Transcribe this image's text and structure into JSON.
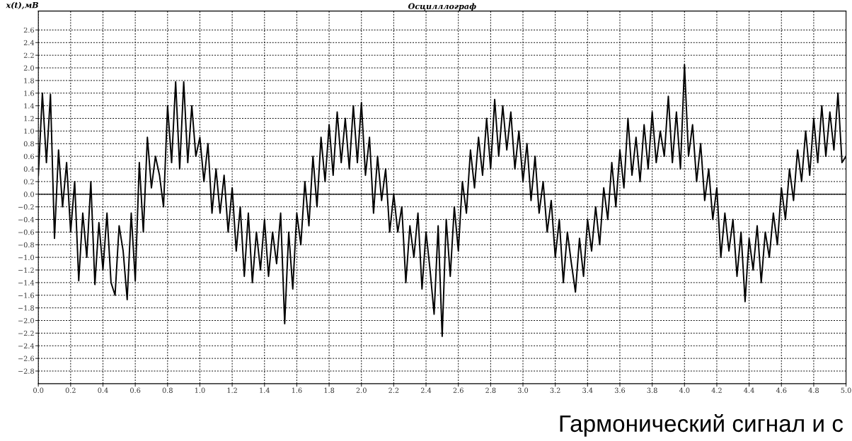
{
  "chart_data": {
    "type": "line",
    "title": "Осцилллограф",
    "ylabel": "x(t),мВ",
    "annotations": [
      "Гармонический сигнал и с"
    ],
    "xlim": [
      0,
      5
    ],
    "xticks": [
      {
        "value": 0,
        "label": "0.0"
      },
      0.2,
      0.4,
      0.6,
      0.8,
      {
        "value": 1,
        "label": "1.0"
      },
      1.2,
      1.4,
      1.6,
      1.8,
      {
        "value": 2,
        "label": "2.0"
      },
      2.2,
      2.4,
      2.6,
      2.8,
      {
        "value": 3,
        "label": "3.0"
      },
      3.2,
      3.4,
      3.6,
      3.8,
      {
        "value": 4,
        "label": "4.0"
      },
      4.2,
      4.4,
      4.6,
      4.8,
      {
        "value": 5,
        "label": "5.0"
      }
    ],
    "ylim": [
      -3.0,
      2.9
    ],
    "yticks": [
      2.6,
      2.4,
      2.2,
      {
        "value": 2,
        "label": "2.0"
      },
      1.8,
      1.6,
      1.4,
      1.2,
      {
        "value": 1,
        "label": "1.0"
      },
      0.8,
      0.6,
      0.4,
      0.2,
      {
        "value": 0,
        "label": "0.0"
      },
      -0.2,
      -0.4,
      -0.6,
      -0.8,
      {
        "value": -1,
        "label": "−1.0"
      },
      -1.2,
      -1.4,
      -1.6,
      -1.8,
      {
        "value": -2,
        "label": "−2.0"
      },
      -2.2,
      -2.4,
      -2.6,
      -2.8
    ],
    "grid": true,
    "legend": false,
    "marker": "none",
    "line_style": "solid",
    "ref_lines": [
      {
        "axis": "y",
        "value": 0,
        "color": "#000000",
        "line_style": "solid"
      }
    ],
    "series": [
      {
        "color": "#000000",
        "x": [
          0,
          0.025,
          0.05,
          0.075,
          0.1,
          0.125,
          0.15,
          0.175,
          0.2,
          0.225,
          0.25,
          0.275,
          0.3,
          0.325,
          0.35,
          0.375,
          0.4,
          0.425,
          0.45,
          0.475,
          0.5,
          0.525,
          0.55,
          0.575,
          0.6,
          0.625,
          0.65,
          0.675,
          0.7,
          0.725,
          0.75,
          0.775,
          0.8,
          0.825,
          0.85,
          0.875,
          0.9,
          0.925,
          0.95,
          0.975,
          1.0,
          1.025,
          1.05,
          1.075,
          1.1,
          1.125,
          1.15,
          1.175,
          1.2,
          1.225,
          1.25,
          1.275,
          1.3,
          1.325,
          1.35,
          1.375,
          1.4,
          1.425,
          1.45,
          1.475,
          1.5,
          1.525,
          1.55,
          1.575,
          1.6,
          1.625,
          1.65,
          1.675,
          1.7,
          1.725,
          1.75,
          1.775,
          1.8,
          1.825,
          1.85,
          1.875,
          1.9,
          1.925,
          1.95,
          1.975,
          2.0,
          2.025,
          2.05,
          2.075,
          2.1,
          2.125,
          2.15,
          2.175,
          2.2,
          2.225,
          2.25,
          2.275,
          2.3,
          2.325,
          2.35,
          2.375,
          2.4,
          2.425,
          2.45,
          2.475,
          2.5,
          2.525,
          2.55,
          2.575,
          2.6,
          2.625,
          2.65,
          2.675,
          2.7,
          2.725,
          2.75,
          2.775,
          2.8,
          2.825,
          2.85,
          2.875,
          2.9,
          2.925,
          2.95,
          2.975,
          3.0,
          3.025,
          3.05,
          3.075,
          3.1,
          3.125,
          3.15,
          3.175,
          3.2,
          3.225,
          3.25,
          3.275,
          3.3,
          3.325,
          3.35,
          3.375,
          3.4,
          3.425,
          3.45,
          3.475,
          3.5,
          3.525,
          3.55,
          3.575,
          3.6,
          3.625,
          3.65,
          3.675,
          3.7,
          3.725,
          3.75,
          3.775,
          3.8,
          3.825,
          3.85,
          3.875,
          3.9,
          3.925,
          3.95,
          3.975,
          4.0,
          4.025,
          4.05,
          4.075,
          4.1,
          4.125,
          4.15,
          4.175,
          4.2,
          4.225,
          4.25,
          4.275,
          4.3,
          4.325,
          4.35,
          4.375,
          4.4,
          4.425,
          4.45,
          4.475,
          4.5,
          4.525,
          4.55,
          4.575,
          4.6,
          4.625,
          4.65,
          4.675,
          4.7,
          4.725,
          4.75,
          4.775,
          4.8,
          4.825,
          4.85,
          4.875,
          4.9,
          4.925,
          4.95,
          4.975,
          5.0
        ],
        "values": [
          0.3,
          1.6,
          0.5,
          1.58,
          -0.7,
          0.7,
          -0.2,
          0.5,
          -0.6,
          0.2,
          -1.37,
          -0.3,
          -1.0,
          0.2,
          -1.43,
          -0.45,
          -1.2,
          -0.3,
          -1.4,
          -1.6,
          -0.5,
          -0.9,
          -1.67,
          -0.3,
          -1.37,
          0.5,
          -0.6,
          0.9,
          0.1,
          0.6,
          0.3,
          -0.2,
          1.4,
          0.5,
          1.78,
          0.4,
          1.78,
          0.5,
          1.4,
          0.6,
          0.9,
          0.2,
          0.8,
          -0.3,
          0.4,
          -0.3,
          0.3,
          -0.6,
          0.1,
          -0.9,
          -0.2,
          -1.3,
          -0.3,
          -1.4,
          -0.6,
          -1.2,
          -0.4,
          -1.3,
          -0.6,
          -1.1,
          -0.3,
          -2.05,
          -0.6,
          -1.5,
          -0.3,
          -0.8,
          0.2,
          -0.5,
          0.6,
          -0.2,
          0.9,
          0.2,
          1.1,
          0.3,
          1.3,
          0.5,
          1.2,
          0.4,
          1.4,
          0.5,
          1.45,
          0.3,
          0.9,
          -0.3,
          0.6,
          -0.1,
          0.4,
          -0.6,
          0.0,
          -0.6,
          -0.2,
          -1.4,
          -0.5,
          -1.0,
          -0.3,
          -1.5,
          -0.6,
          -1.2,
          -1.9,
          -0.5,
          -2.25,
          -0.4,
          -1.3,
          -0.2,
          -0.9,
          0.2,
          -0.3,
          0.7,
          0.1,
          0.9,
          0.3,
          1.2,
          0.4,
          1.5,
          0.6,
          1.4,
          0.7,
          1.3,
          0.4,
          1.0,
          0.2,
          0.8,
          -0.1,
          0.6,
          -0.3,
          0.2,
          -0.6,
          -0.1,
          -1.0,
          -0.4,
          -1.4,
          -0.6,
          -1.1,
          -1.55,
          -0.7,
          -1.3,
          -0.4,
          -0.9,
          -0.2,
          -0.8,
          0.1,
          -0.4,
          0.5,
          -0.2,
          0.7,
          0.1,
          1.2,
          0.3,
          0.9,
          0.2,
          1.1,
          0.4,
          1.3,
          0.5,
          1.0,
          0.6,
          1.55,
          0.5,
          1.3,
          0.4,
          2.05,
          0.6,
          1.1,
          0.2,
          0.8,
          -0.1,
          0.4,
          -0.4,
          0.1,
          -1.0,
          -0.3,
          -0.9,
          -0.4,
          -1.3,
          -0.6,
          -1.7,
          -0.7,
          -1.2,
          -0.5,
          -1.4,
          -0.6,
          -1.0,
          -0.3,
          -0.8,
          0.1,
          -0.4,
          0.4,
          -0.1,
          0.7,
          0.2,
          1.0,
          0.3,
          1.2,
          0.5,
          1.4,
          0.6,
          1.3,
          0.7,
          1.6,
          0.5,
          0.6
        ]
      }
    ]
  }
}
